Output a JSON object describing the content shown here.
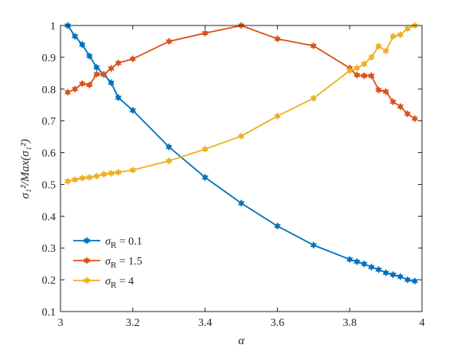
{
  "chart_data": {
    "type": "line",
    "xlabel": "α",
    "ylabel": "σ₁²/Max(σ₁²)",
    "xlim": [
      3,
      4
    ],
    "ylim": [
      0.1,
      1
    ],
    "xticks": [
      "3",
      "3.2",
      "3.4",
      "3.6",
      "3.8",
      "4"
    ],
    "yticks": [
      "0.1",
      "0.2",
      "0.3",
      "0.4",
      "0.5",
      "0.6",
      "0.7",
      "0.8",
      "0.9",
      "1"
    ],
    "grid": false,
    "legend_position": "bottom-left",
    "series": [
      {
        "name": "σR = 0.1",
        "legend_parts": {
          "sym": "σ",
          "sub": "R",
          "rest": " = 0.1"
        },
        "color": "#0072BD",
        "x": [
          3.02,
          3.04,
          3.06,
          3.08,
          3.1,
          3.12,
          3.14,
          3.16,
          3.2,
          3.3,
          3.4,
          3.5,
          3.6,
          3.7,
          3.8,
          3.82,
          3.84,
          3.86,
          3.88,
          3.9,
          3.92,
          3.94,
          3.96,
          3.98
        ],
        "y": [
          1.0,
          0.966,
          0.94,
          0.904,
          0.868,
          0.846,
          0.82,
          0.773,
          0.733,
          0.618,
          0.522,
          0.441,
          0.369,
          0.309,
          0.264,
          0.257,
          0.25,
          0.24,
          0.232,
          0.222,
          0.216,
          0.21,
          0.2,
          0.196
        ]
      },
      {
        "name": "σR = 1.5",
        "legend_parts": {
          "sym": "σ",
          "sub": "R",
          "rest": " = 1.5"
        },
        "color": "#D95319",
        "x": [
          3.02,
          3.04,
          3.06,
          3.08,
          3.1,
          3.12,
          3.14,
          3.16,
          3.2,
          3.3,
          3.4,
          3.5,
          3.6,
          3.7,
          3.8,
          3.82,
          3.84,
          3.86,
          3.88,
          3.9,
          3.92,
          3.94,
          3.96,
          3.98
        ],
        "y": [
          0.79,
          0.8,
          0.817,
          0.813,
          0.847,
          0.846,
          0.865,
          0.882,
          0.895,
          0.95,
          0.976,
          1.0,
          0.958,
          0.936,
          0.866,
          0.844,
          0.842,
          0.842,
          0.797,
          0.792,
          0.76,
          0.745,
          0.722,
          0.707
        ]
      },
      {
        "name": "σR = 4",
        "legend_parts": {
          "sym": "σ",
          "sub": "R",
          "rest": " = 4"
        },
        "color": "#EDB120",
        "x": [
          3.02,
          3.04,
          3.06,
          3.08,
          3.1,
          3.12,
          3.14,
          3.16,
          3.2,
          3.3,
          3.4,
          3.5,
          3.6,
          3.7,
          3.8,
          3.82,
          3.84,
          3.86,
          3.88,
          3.9,
          3.92,
          3.94,
          3.96,
          3.98
        ],
        "y": [
          0.51,
          0.515,
          0.52,
          0.522,
          0.526,
          0.532,
          0.535,
          0.538,
          0.545,
          0.574,
          0.611,
          0.652,
          0.715,
          0.771,
          0.858,
          0.866,
          0.879,
          0.9,
          0.935,
          0.92,
          0.966,
          0.971,
          0.99,
          1.0
        ]
      }
    ]
  }
}
